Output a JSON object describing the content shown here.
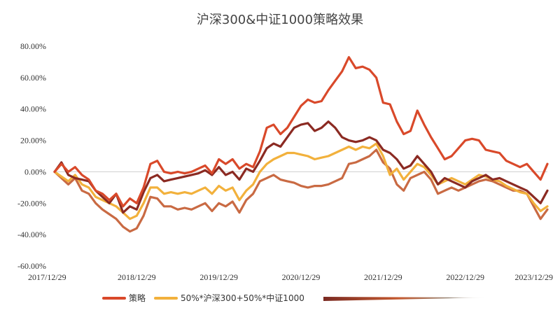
{
  "chart_data": {
    "type": "line",
    "title": "沪深300&中证1000策略效果",
    "xlabel": "",
    "ylabel": "",
    "ylim": [
      -60,
      80
    ],
    "y_ticks": [
      "80.00%",
      "60.00%",
      "40.00%",
      "20.00%",
      "0.00%",
      "-20.00%",
      "-40.00%",
      "-60.00%"
    ],
    "y_tick_values": [
      80,
      60,
      40,
      20,
      0,
      -20,
      -40,
      -60
    ],
    "x_range": [
      0,
      72
    ],
    "x_ticks": [
      "2017/12/29",
      "2018/12/29",
      "2019/12/29",
      "2020/12/29",
      "2021/12/29",
      "2022/12/29",
      "2023/12/29"
    ],
    "x_tick_positions": [
      0,
      12,
      24,
      36,
      48,
      60,
      72
    ],
    "legend_position": "bottom",
    "series": [
      {
        "name": "策略",
        "color": "#D9492A",
        "x": [
          0,
          1,
          2,
          3,
          4,
          5,
          6,
          7,
          8,
          9,
          10,
          11,
          12,
          13,
          14,
          15,
          16,
          17,
          18,
          19,
          20,
          21,
          22,
          23,
          24,
          25,
          26,
          27,
          28,
          29,
          30,
          31,
          32,
          33,
          34,
          35,
          36,
          37,
          38,
          39,
          40,
          41,
          42,
          43,
          44,
          45,
          46,
          47,
          48,
          49,
          50,
          51,
          52,
          53,
          54,
          55,
          56,
          57,
          58,
          59,
          60,
          61,
          62,
          63,
          64,
          65,
          66,
          67,
          68,
          69,
          70,
          71,
          72
        ],
        "values": [
          0,
          5,
          0,
          3,
          -2,
          -5,
          -12,
          -14,
          -18,
          -14,
          -22,
          -17,
          -20,
          -10,
          5,
          7,
          0,
          -1,
          0,
          -1,
          0,
          2,
          4,
          -1,
          8,
          5,
          8,
          2,
          5,
          3,
          13,
          28,
          30,
          24,
          28,
          35,
          42,
          46,
          44,
          45,
          52,
          58,
          64,
          73,
          66,
          67,
          65,
          60,
          44,
          43,
          32,
          24,
          26,
          39,
          30,
          22,
          15,
          8,
          10,
          15,
          20,
          21,
          20,
          14,
          13,
          12,
          7,
          5,
          3,
          5,
          0,
          -5,
          5
        ]
      },
      {
        "name": "50%*沪深300+50%*中证1000",
        "color": "#F2B13C",
        "x": [
          0,
          1,
          2,
          3,
          4,
          5,
          6,
          7,
          8,
          9,
          10,
          11,
          12,
          13,
          14,
          15,
          16,
          17,
          18,
          19,
          20,
          21,
          22,
          23,
          24,
          25,
          26,
          27,
          28,
          29,
          30,
          31,
          32,
          33,
          34,
          35,
          36,
          37,
          38,
          39,
          40,
          41,
          42,
          43,
          44,
          45,
          46,
          47,
          48,
          49,
          50,
          51,
          52,
          53,
          54,
          55,
          56,
          57,
          58,
          59,
          60,
          61,
          62,
          63,
          64,
          65,
          66,
          67,
          68,
          69,
          70,
          71,
          72
        ],
        "values": [
          0,
          -3,
          -6,
          -2,
          -8,
          -10,
          -16,
          -18,
          -20,
          -22,
          -26,
          -30,
          -28,
          -20,
          -10,
          -10,
          -14,
          -13,
          -14,
          -13,
          -14,
          -12,
          -10,
          -14,
          -9,
          -12,
          -10,
          -18,
          -12,
          -8,
          0,
          5,
          8,
          10,
          12,
          12,
          11,
          10,
          8,
          9,
          10,
          12,
          14,
          16,
          14,
          16,
          15,
          18,
          10,
          -2,
          2,
          -5,
          0,
          5,
          3,
          -2,
          -8,
          -6,
          -4,
          -6,
          -8,
          -5,
          -2,
          -3,
          -5,
          -6,
          -9,
          -11,
          -13,
          -14,
          -20,
          -25,
          -22
        ]
      },
      {
        "name": "",
        "color": "#8B2A22",
        "x": [
          0,
          1,
          2,
          3,
          4,
          5,
          6,
          7,
          8,
          9,
          10,
          11,
          12,
          13,
          14,
          15,
          16,
          17,
          18,
          19,
          20,
          21,
          22,
          23,
          24,
          25,
          26,
          27,
          28,
          29,
          30,
          31,
          32,
          33,
          34,
          35,
          36,
          37,
          38,
          39,
          40,
          41,
          42,
          43,
          44,
          45,
          46,
          47,
          48,
          49,
          50,
          51,
          52,
          53,
          54,
          55,
          56,
          57,
          58,
          59,
          60,
          61,
          62,
          63,
          64,
          65,
          66,
          67,
          68,
          69,
          70,
          71,
          72
        ],
        "values": [
          0,
          6,
          -2,
          -4,
          -5,
          -6,
          -12,
          -16,
          -20,
          -14,
          -26,
          -22,
          -24,
          -13,
          -4,
          -2,
          -6,
          -5,
          -4,
          -3,
          -2,
          -1,
          1,
          -2,
          3,
          -2,
          0,
          -5,
          2,
          0,
          7,
          15,
          18,
          16,
          22,
          28,
          30,
          31,
          26,
          28,
          32,
          28,
          22,
          20,
          19,
          20,
          22,
          20,
          14,
          12,
          8,
          2,
          4,
          10,
          5,
          0,
          -8,
          -4,
          -6,
          -8,
          -10,
          -6,
          -4,
          -2,
          -5,
          -4,
          -6,
          -8,
          -10,
          -12,
          -16,
          -20,
          -12
        ]
      },
      {
        "name": "",
        "color": "#C96A43",
        "x": [
          0,
          1,
          2,
          3,
          4,
          5,
          6,
          7,
          8,
          9,
          10,
          11,
          12,
          13,
          14,
          15,
          16,
          17,
          18,
          19,
          20,
          21,
          22,
          23,
          24,
          25,
          26,
          27,
          28,
          29,
          30,
          31,
          32,
          33,
          34,
          35,
          36,
          37,
          38,
          39,
          40,
          41,
          42,
          43,
          44,
          45,
          46,
          47,
          48,
          49,
          50,
          51,
          52,
          53,
          54,
          55,
          56,
          57,
          58,
          59,
          60,
          61,
          62,
          63,
          64,
          65,
          66,
          67,
          68,
          69,
          70,
          71,
          72
        ],
        "values": [
          0,
          -4,
          -8,
          -4,
          -12,
          -14,
          -20,
          -24,
          -27,
          -30,
          -35,
          -38,
          -36,
          -28,
          -16,
          -17,
          -22,
          -22,
          -24,
          -23,
          -24,
          -22,
          -20,
          -25,
          -20,
          -22,
          -19,
          -26,
          -18,
          -14,
          -6,
          -4,
          -2,
          -5,
          -6,
          -7,
          -9,
          -10,
          -9,
          -9,
          -8,
          -6,
          -4,
          5,
          6,
          8,
          10,
          14,
          6,
          2,
          -8,
          -12,
          -4,
          -2,
          0,
          -5,
          -14,
          -12,
          -10,
          -12,
          -10,
          -8,
          -6,
          -5,
          -6,
          -8,
          -10,
          -12,
          -12,
          -14,
          -22,
          -30,
          -24
        ]
      }
    ]
  }
}
